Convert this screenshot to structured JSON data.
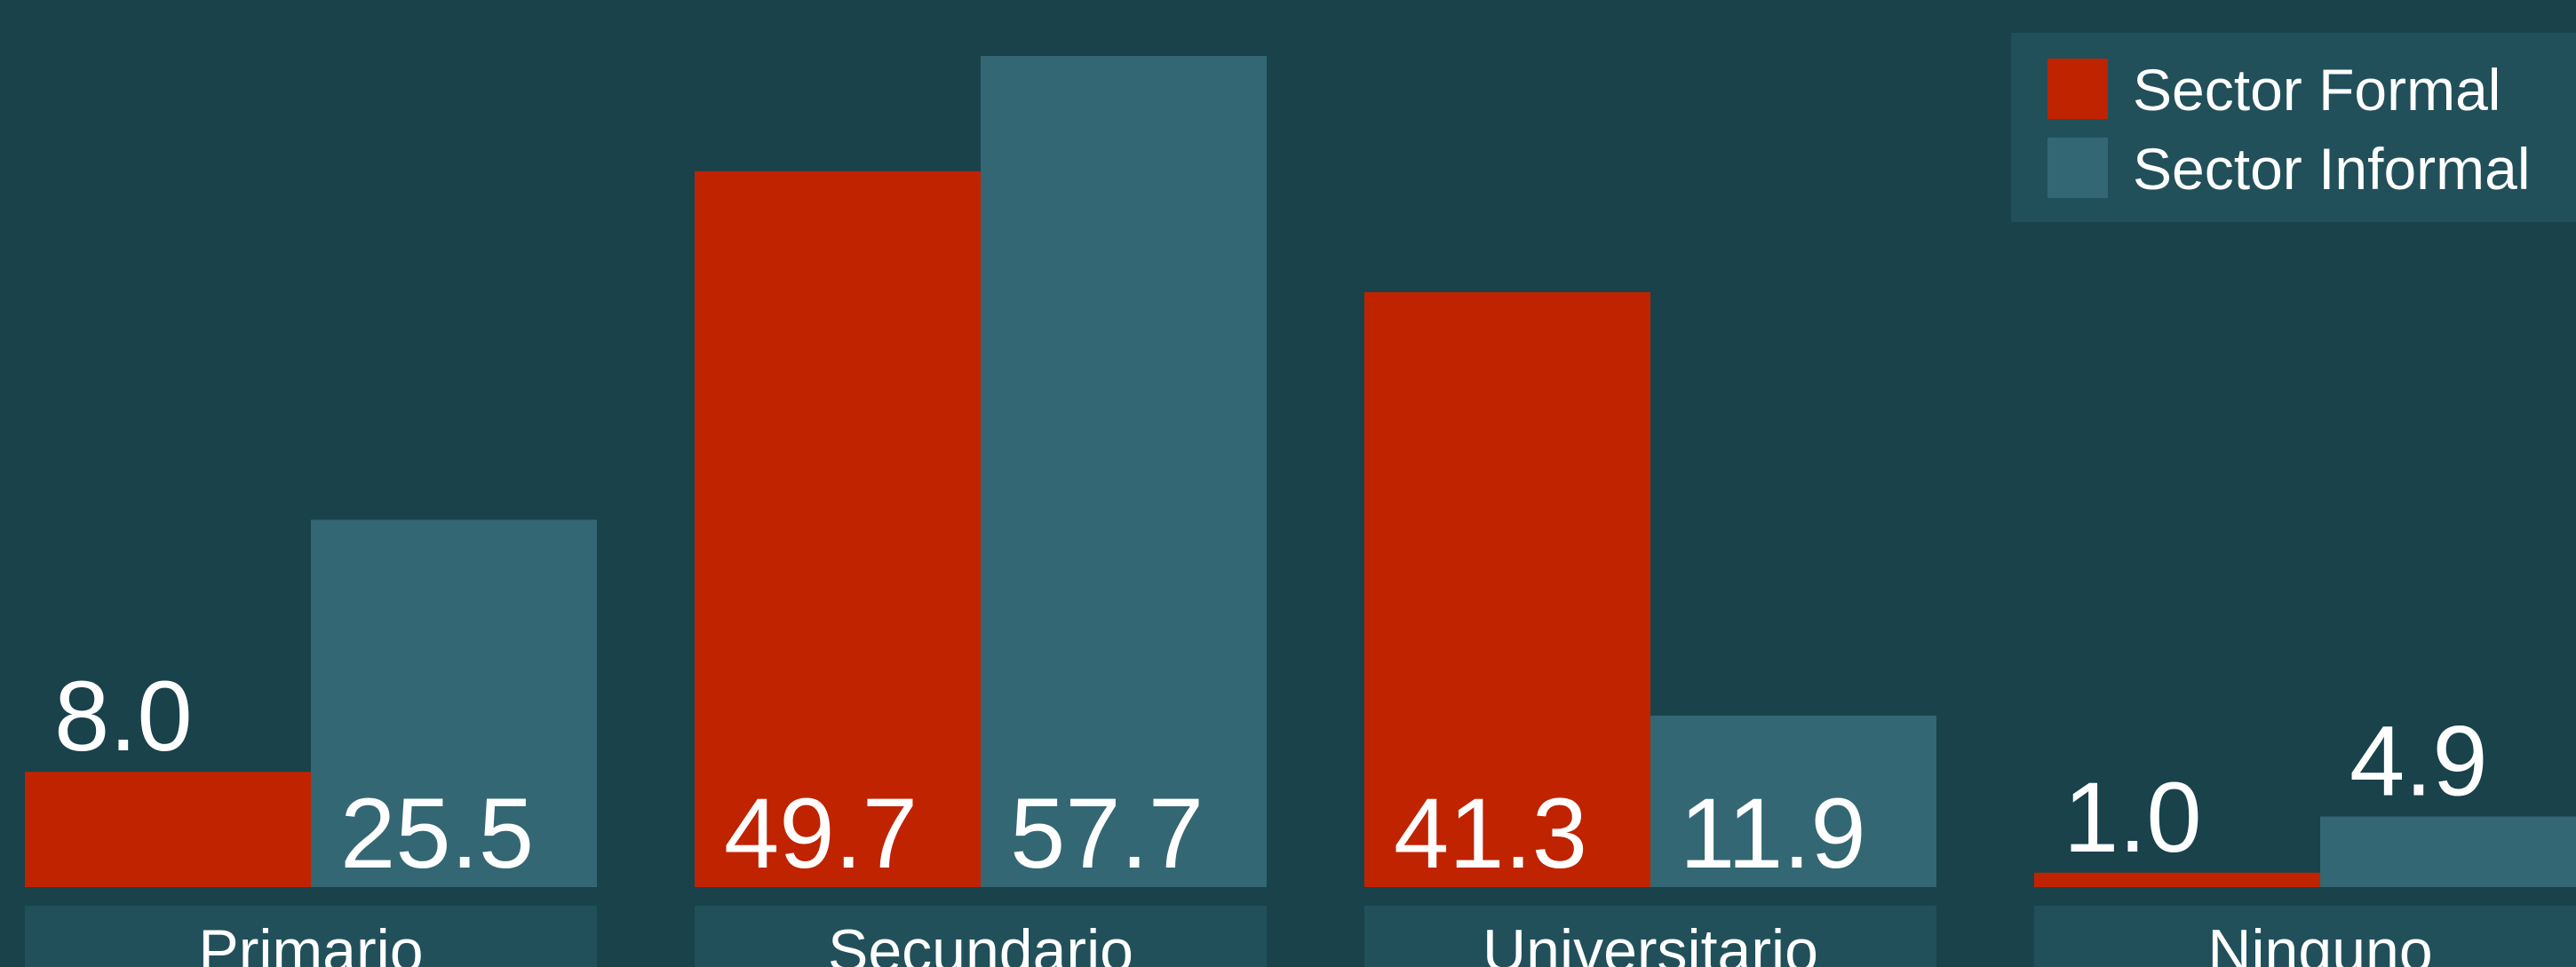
{
  "chart_data": {
    "type": "bar",
    "categories": [
      "Primario",
      "Secundario",
      "Universitario",
      "Ninguno"
    ],
    "series": [
      {
        "name": "Sector Formal",
        "color": "#c02300",
        "values": [
          8.0,
          49.7,
          41.3,
          1.0
        ],
        "value_labels": [
          "8.0",
          "49.7",
          "41.3",
          "1.0"
        ]
      },
      {
        "name": "Sector Informal",
        "color": "#336773",
        "values": [
          25.5,
          57.7,
          11.9,
          4.9
        ],
        "value_labels": [
          "25.5",
          "57.7",
          "11.9",
          "4.9"
        ]
      }
    ],
    "legend": "top-right"
  }
}
